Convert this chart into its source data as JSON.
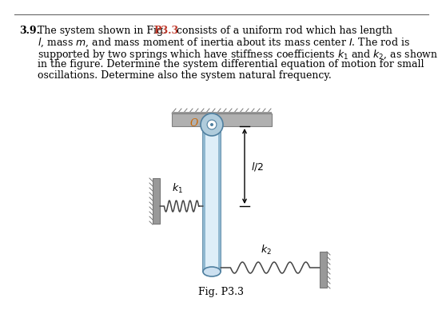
{
  "fig_label": "Fig. P3.3",
  "bg_color": "#ffffff",
  "rod_color_light": "#cce0f0",
  "rod_color_mid": "#a8c8e0",
  "rod_outline": "#5080a0",
  "wall_color": "#999999",
  "ceiling_color": "#aaaaaa",
  "spring_color": "#444444",
  "k1_label": "k₁",
  "k2_label": "k₂",
  "l2_label": "l/2",
  "O_label": "O",
  "text_line1": "3.9.  The system shown in Fig. P3.3 consists of a uniform rod which has length",
  "text_line2": "l, mass m, and mass moment of inertia about its mass center I. The rod is",
  "text_line3": "supported by two springs which have stiffness coefficients k₁ and k₂, as shown",
  "text_line4": "in the figure. Determine the system differential equation of motion for small",
  "text_line5": "oscillations. Determine also the system natural frequency."
}
